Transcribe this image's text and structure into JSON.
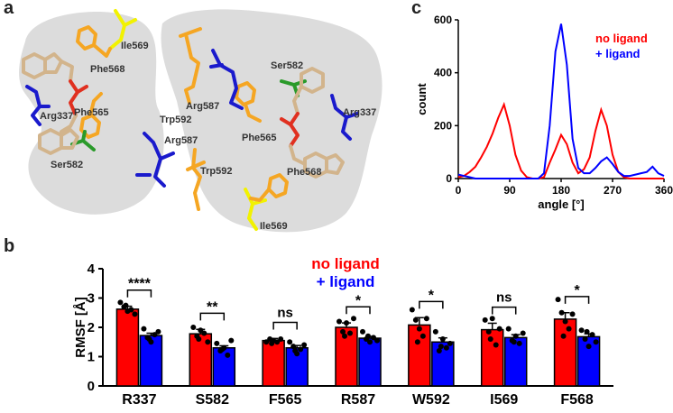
{
  "panels": {
    "a": "a",
    "b": "b",
    "c": "c"
  },
  "colors": {
    "no_ligand": "#ff0000",
    "ligand": "#0000ff",
    "bar_no_ligand": "#ff0000",
    "bar_ligand": "#0000ff",
    "structure_bg": "#dcdcdc",
    "residue_orange": "#f5a623",
    "residue_yellow": "#f2f200",
    "residue_blue": "#1a1acc",
    "residue_green": "#2a9a2a"
  },
  "structure": {
    "labels": [
      "Ile569",
      "Phe568",
      "Phe565",
      "Arg337",
      "Ser582",
      "Trp592",
      "Arg587",
      "Arg587",
      "Trp592",
      "Ser582",
      "Phe565",
      "Arg337",
      "Phe568",
      "Ile569"
    ]
  },
  "chart_data": [
    {
      "panel": "b",
      "type": "bar",
      "ylabel": "RMSF [Å]",
      "ylim": [
        0,
        4
      ],
      "yticks": [
        "0",
        "1",
        "2",
        "3",
        "4"
      ],
      "legend": [
        "no ligand",
        "+ ligand"
      ],
      "categories": [
        "R337",
        "S582",
        "F565",
        "R587",
        "W592",
        "I569",
        "F568"
      ],
      "series": [
        {
          "name": "no ligand",
          "values": [
            2.62,
            1.78,
            1.55,
            2.0,
            2.08,
            1.92,
            2.28
          ],
          "sem": [
            0.1,
            0.15,
            0.07,
            0.15,
            0.25,
            0.22,
            0.22
          ],
          "points": [
            [
              2.85,
              2.7,
              2.55,
              2.6,
              2.45,
              2.75
            ],
            [
              2.0,
              1.7,
              1.9,
              1.8,
              1.5,
              1.6
            ],
            [
              1.5,
              1.6,
              1.55,
              1.5,
              1.6,
              1.45
            ],
            [
              2.2,
              1.85,
              2.15,
              1.8,
              2.3,
              1.7
            ],
            [
              2.6,
              2.25,
              1.95,
              1.7,
              2.3,
              1.5
            ],
            [
              2.25,
              1.85,
              2.3,
              1.4,
              1.95,
              1.6
            ],
            [
              2.95,
              2.5,
              2.2,
              1.95,
              2.45,
              1.7
            ]
          ]
        },
        {
          "name": "+ ligand",
          "values": [
            1.72,
            1.3,
            1.3,
            1.63,
            1.5,
            1.65,
            1.68
          ],
          "sem": [
            0.08,
            0.07,
            0.08,
            0.06,
            0.14,
            0.1,
            0.1
          ],
          "points": [
            [
              1.95,
              1.65,
              1.5,
              1.75,
              1.85,
              1.6
            ],
            [
              1.45,
              1.2,
              1.3,
              1.05,
              1.55,
              1.25
            ],
            [
              1.5,
              1.35,
              1.1,
              1.25,
              1.4,
              1.2
            ],
            [
              1.85,
              1.6,
              1.5,
              1.65,
              1.55,
              1.7
            ],
            [
              1.85,
              1.2,
              1.6,
              1.3,
              1.45,
              1.35
            ],
            [
              1.95,
              1.55,
              1.7,
              1.45,
              1.8,
              1.5
            ],
            [
              1.9,
              1.6,
              1.35,
              1.75,
              1.5,
              1.85
            ]
          ]
        }
      ],
      "significance": [
        "****",
        "**",
        "ns",
        "*",
        "*",
        "ns",
        "*"
      ]
    },
    {
      "panel": "c",
      "type": "line",
      "xlabel": "angle [°]",
      "ylabel": "count",
      "xlim": [
        0,
        360
      ],
      "ylim": [
        0,
        600
      ],
      "xticks": [
        "0",
        "90",
        "180",
        "270",
        "360"
      ],
      "yticks": [
        "0",
        "200",
        "400",
        "600"
      ],
      "legend": [
        "no ligand",
        "+ ligand"
      ],
      "x": [
        0,
        10,
        20,
        30,
        40,
        50,
        60,
        70,
        80,
        90,
        100,
        110,
        120,
        130,
        140,
        150,
        160,
        170,
        180,
        190,
        200,
        210,
        220,
        230,
        240,
        250,
        260,
        270,
        280,
        290,
        300,
        310,
        320,
        330,
        340,
        350,
        360
      ],
      "series": [
        {
          "name": "no ligand",
          "values": [
            5,
            10,
            25,
            45,
            80,
            120,
            170,
            230,
            280,
            200,
            90,
            30,
            5,
            0,
            0,
            5,
            60,
            110,
            165,
            130,
            60,
            20,
            35,
            80,
            180,
            260,
            200,
            90,
            25,
            5,
            0,
            0,
            0,
            0,
            0,
            0,
            0
          ]
        },
        {
          "name": "+ ligand",
          "values": [
            15,
            10,
            5,
            0,
            0,
            0,
            0,
            0,
            0,
            0,
            0,
            0,
            0,
            0,
            0,
            20,
            200,
            480,
            585,
            430,
            150,
            40,
            20,
            20,
            40,
            65,
            80,
            55,
            25,
            10,
            10,
            15,
            20,
            25,
            45,
            20,
            10
          ]
        }
      ]
    }
  ]
}
